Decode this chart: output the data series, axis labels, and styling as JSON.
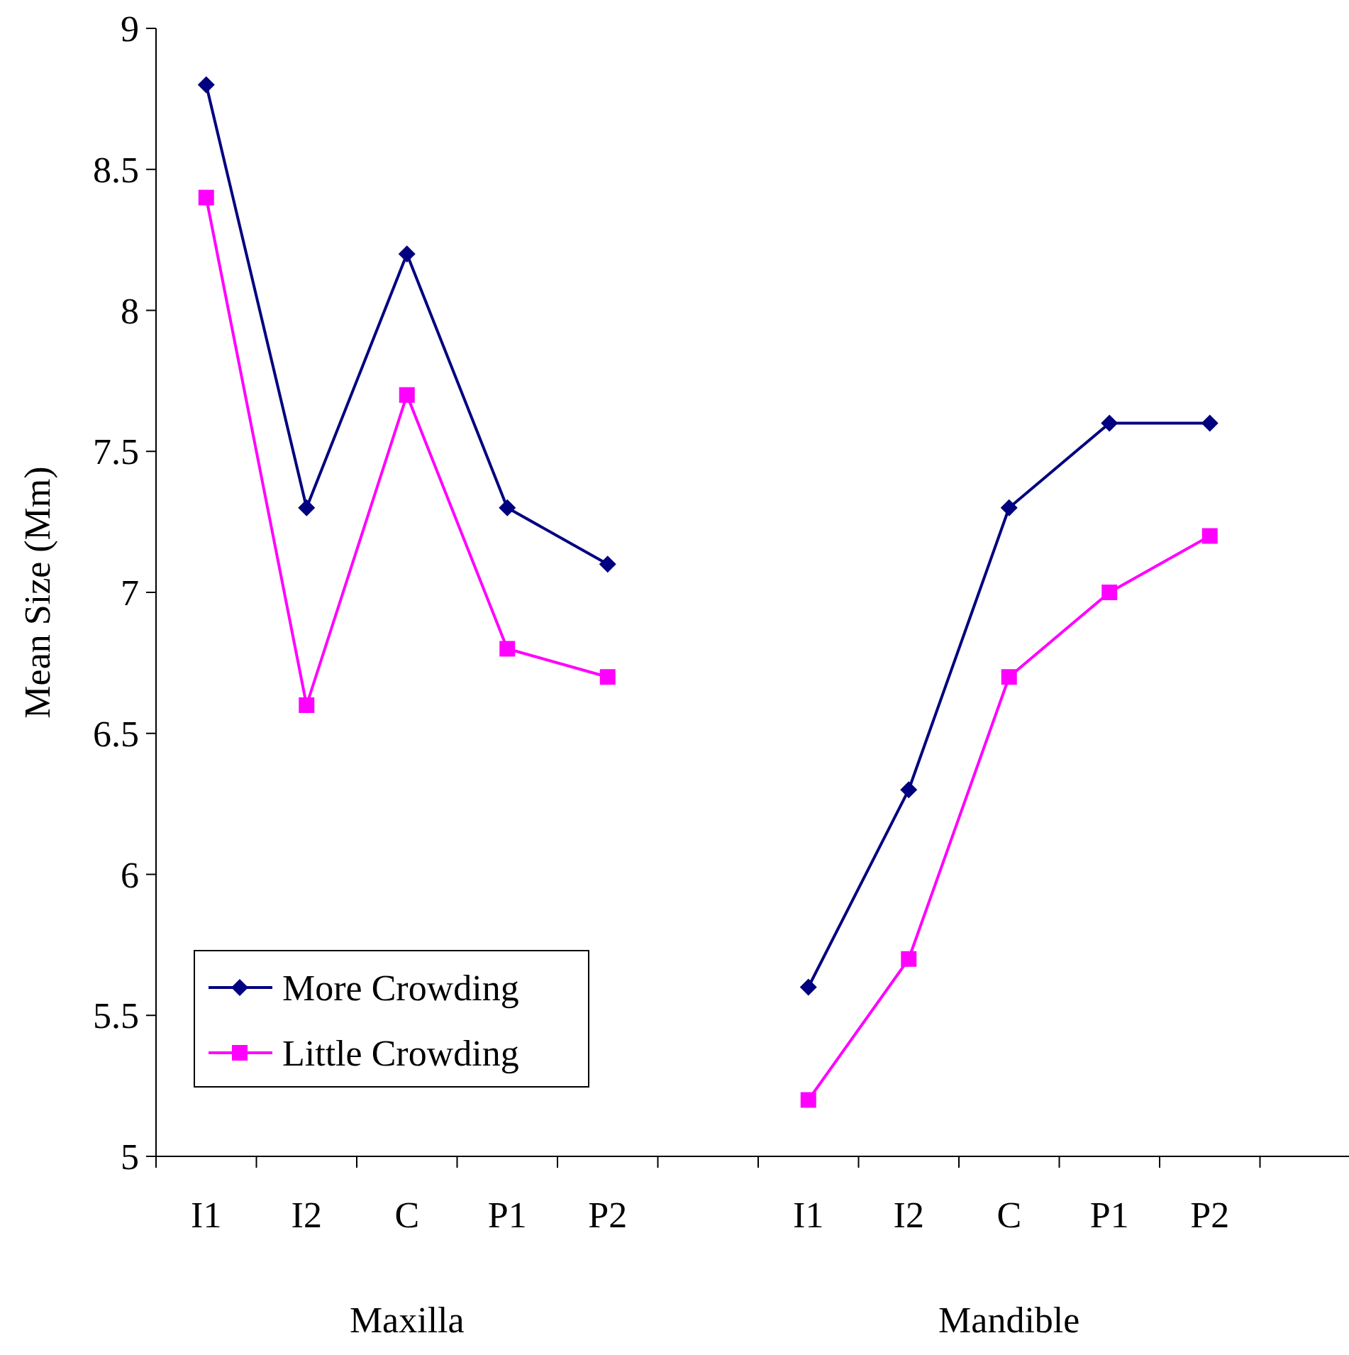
{
  "chart_data": {
    "type": "line",
    "ylabel": "Mean Size (Mm)",
    "categories": [
      "I1",
      "I2",
      "C",
      "P1",
      "P2",
      null,
      "I1",
      "I2",
      "C",
      "P1",
      "P2",
      null
    ],
    "series": [
      {
        "name": "More Crowding",
        "color": "#000080",
        "marker": "diamond",
        "values": [
          8.8,
          7.3,
          8.2,
          7.3,
          7.1,
          null,
          5.6,
          6.3,
          7.3,
          7.6,
          7.6,
          null
        ]
      },
      {
        "name": "Little Crowding",
        "color": "#ff00ff",
        "marker": "square",
        "values": [
          8.4,
          6.6,
          7.7,
          6.8,
          6.7,
          null,
          5.2,
          5.7,
          6.7,
          7.0,
          7.2,
          null
        ]
      }
    ],
    "ylim": [
      5,
      9
    ],
    "yticks": [
      5,
      5.5,
      6,
      6.5,
      7,
      7.5,
      8,
      8.5,
      9
    ],
    "annotations": [
      "Maxilla",
      "Mandible"
    ],
    "legend": "bottom left",
    "grid": false
  }
}
